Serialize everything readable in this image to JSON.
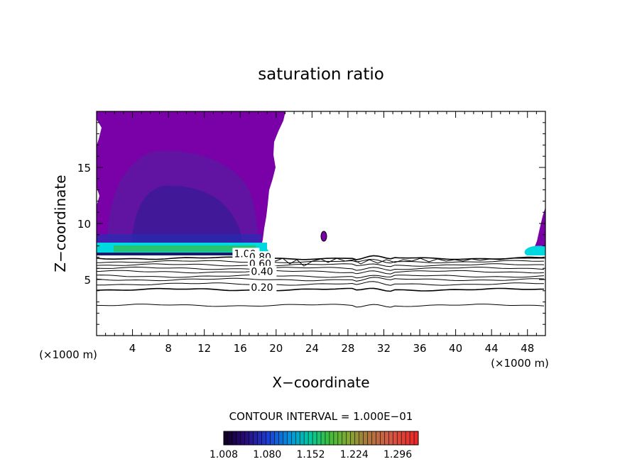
{
  "chart_data": {
    "type": "heatmap",
    "title": "saturation ratio",
    "xlabel": "X−coordinate",
    "ylabel": "Z−coordinate",
    "x_unit_label": "(×1000 m)",
    "y_unit_label": "(×1000 m)",
    "xlim": [
      0,
      50
    ],
    "ylim": [
      0,
      20
    ],
    "x_ticks": [
      4,
      8,
      12,
      16,
      20,
      24,
      28,
      32,
      36,
      40,
      44,
      48
    ],
    "y_ticks": [
      5,
      10,
      15
    ],
    "contour_interval_text": "CONTOUR INTERVAL = 1.000E−01",
    "colorbar_labels": [
      "1.008",
      "1.080",
      "1.152",
      "1.224",
      "1.296"
    ],
    "colorbar_range": [
      1.008,
      1.33
    ],
    "colors": {
      "high_saturation_fill": "#7a00a8",
      "deep_blue": "#2a1a8a",
      "cyan_band": "#00e0e0",
      "green_band": "#20c060",
      "contour_line": "#000000"
    },
    "contour_labels": [
      {
        "text": "1.00",
        "x": 15.3,
        "z": 7.0
      },
      {
        "text": "0.80",
        "x": 17.0,
        "z": 6.7
      },
      {
        "text": "0.60",
        "x": 17.0,
        "z": 6.1
      },
      {
        "text": "0.40",
        "x": 17.2,
        "z": 5.4
      },
      {
        "text": "0.20",
        "x": 17.2,
        "z": 4.0
      }
    ],
    "contour_levels": [
      {
        "level": 1.0,
        "z": 6.9
      },
      {
        "level": 0.9,
        "z": 6.6
      },
      {
        "level": 0.8,
        "z": 6.3
      },
      {
        "level": 0.7,
        "z": 6.0
      },
      {
        "level": 0.6,
        "z": 5.7
      },
      {
        "level": 0.5,
        "z": 5.3
      },
      {
        "level": 0.4,
        "z": 5.0
      },
      {
        "level": 0.3,
        "z": 4.6
      },
      {
        "level": 0.2,
        "z": 4.1
      },
      {
        "level": 0.1,
        "z": 2.7
      }
    ]
  }
}
